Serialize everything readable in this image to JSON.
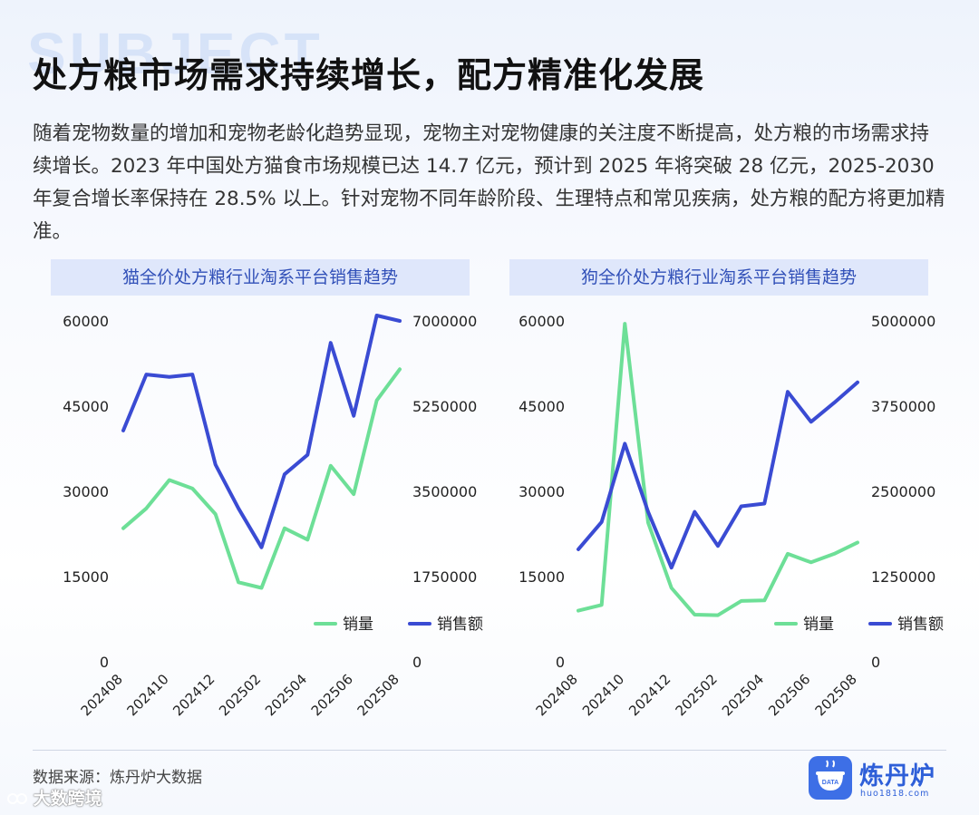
{
  "background_word": "SUBJECT",
  "title": "处方粮市场需求持续增长，配方精准化发展",
  "intro": "随着宠物数量的增加和宠物老龄化趋势显现，宠物主对宠物健康的关注度不断提高，处方粮的市场需求持续增长。2023 年中国处方猫食市场规模已达 14.7 亿元，预计到 2025 年将突破 28 亿元，2025-2030  年复合增长率保持在  28.5%  以上。针对宠物不同年龄阶段、生理特点和常见疾病，处方粮的配方将更加精准。",
  "colors": {
    "volume": "#6ddf97",
    "revenue": "#3a4bd3",
    "header_bg": "#dfe7fb",
    "header_text": "#3150b8"
  },
  "chart_data": [
    {
      "type": "line",
      "title": "猫全价处方粮行业淘系平台销售趋势",
      "x": [
        "202408",
        "202409",
        "202410",
        "202411",
        "202412",
        "202501",
        "202502",
        "202503",
        "202504",
        "202505",
        "202506",
        "202507",
        "202508"
      ],
      "x_tick_labels": [
        "202408",
        "202410",
        "202412",
        "202502",
        "202504",
        "202506",
        "202508"
      ],
      "y_left_ticks": [
        "60000",
        "45000",
        "30000",
        "15000",
        "0"
      ],
      "y_right_ticks": [
        "7000000",
        "5250000",
        "3500000",
        "1750000",
        "0"
      ],
      "y_left_lim": [
        0,
        60000
      ],
      "y_right_lim": [
        0,
        7000000
      ],
      "series": [
        {
          "name": "销量",
          "axis": "left",
          "values": [
            23500,
            27000,
            32000,
            30500,
            26000,
            14000,
            13000,
            23500,
            21500,
            34500,
            29500,
            46000,
            51500
          ]
        },
        {
          "name": "销售额",
          "axis": "right",
          "values": [
            4750000,
            5900000,
            5850000,
            5900000,
            4050000,
            3150000,
            2350000,
            3850000,
            4250000,
            6550000,
            5050000,
            7350000,
            7000000
          ]
        }
      ],
      "legend": [
        "销量",
        "销售额"
      ],
      "legend_position": "bottom-right",
      "grid": false
    },
    {
      "type": "line",
      "title": "狗全价处方粮行业淘系平台销售趋势",
      "x": [
        "202408",
        "202409",
        "202410",
        "202411",
        "202412",
        "202501",
        "202502",
        "202503",
        "202504",
        "202505",
        "202506",
        "202507",
        "202508"
      ],
      "x_tick_labels": [
        "202408",
        "202410",
        "202412",
        "202502",
        "202504",
        "202506",
        "202508"
      ],
      "y_left_ticks": [
        "60000",
        "45000",
        "30000",
        "15000",
        "0"
      ],
      "y_right_ticks": [
        "5000000",
        "3750000",
        "2500000",
        "1250000",
        "0"
      ],
      "y_left_lim": [
        0,
        60000
      ],
      "y_right_lim": [
        0,
        5000000
      ],
      "series": [
        {
          "name": "销量",
          "axis": "left",
          "values": [
            9000,
            10000,
            59500,
            24500,
            13000,
            8300,
            8200,
            10700,
            10800,
            19000,
            17500,
            19000,
            21000
          ]
        },
        {
          "name": "销售额",
          "axis": "right",
          "values": [
            1650000,
            2050000,
            3200000,
            2200000,
            1380000,
            2200000,
            1700000,
            2280000,
            2320000,
            3960000,
            3520000,
            3800000,
            4100000
          ]
        }
      ],
      "legend": [
        "销量",
        "销售额"
      ],
      "legend_position": "bottom-right",
      "grid": false
    }
  ],
  "source": "数据来源：炼丹炉大数据",
  "logo": {
    "name": "炼丹炉",
    "url": "huo1818.com",
    "badge_text": "DATA"
  },
  "watermark_text": "大数跨境"
}
